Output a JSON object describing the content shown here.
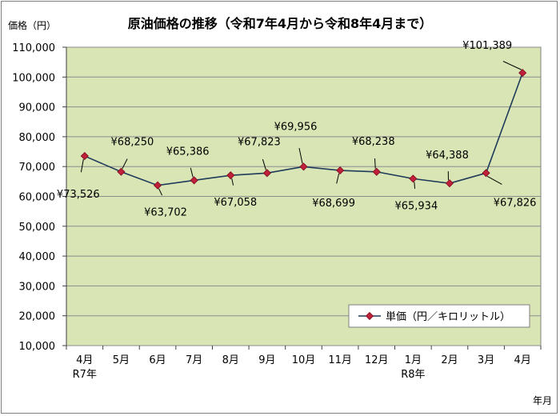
{
  "chart_data": {
    "type": "line",
    "title": "原油価格の推移（令和7年4月から令和8年4月まで）",
    "ylabel": "価格（円）",
    "xlabel": "年月",
    "categories": [
      "4月",
      "5月",
      "6月",
      "7月",
      "8月",
      "9月",
      "10月",
      "11月",
      "12月",
      "1月",
      "2月",
      "3月",
      "4月"
    ],
    "category_sublabels": [
      "R7年",
      "",
      "",
      "",
      "",
      "",
      "",
      "",
      "",
      "R8年",
      "",
      "",
      ""
    ],
    "series": [
      {
        "name": "単価（円／キロリットル）",
        "values": [
          73526,
          68250,
          63702,
          65386,
          67058,
          67823,
          69956,
          68699,
          68238,
          65934,
          64388,
          67826,
          101389
        ],
        "labels": [
          "¥73,526",
          "¥68,250",
          "¥63,702",
          "¥65,386",
          "¥67,058",
          "¥67,823",
          "¥69,956",
          "¥68,699",
          "¥68,238",
          "¥65,934",
          "¥64,388",
          "¥67,826",
          "¥101,389"
        ]
      }
    ],
    "ylim": [
      10000,
      110000
    ],
    "yticks": [
      10000,
      20000,
      30000,
      40000,
      50000,
      60000,
      70000,
      80000,
      90000,
      100000,
      110000
    ],
    "ytick_labels": [
      "10,000",
      "20,000",
      "30,000",
      "40,000",
      "50,000",
      "60,000",
      "70,000",
      "80,000",
      "90,000",
      "100,000",
      "110,000"
    ],
    "grid": true,
    "legend_position": "bottom-right",
    "colors": {
      "plot_background": "#d9e5b4",
      "line": "#1f3b5a",
      "marker": "#c0203a",
      "gridline": "#8c8c8c"
    }
  }
}
